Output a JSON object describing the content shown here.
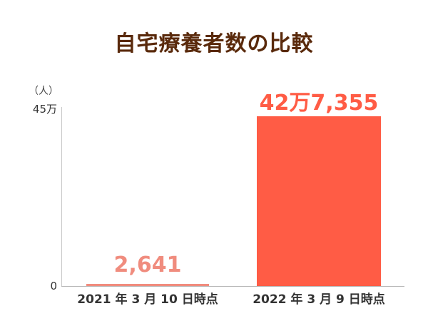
{
  "chart_data": {
    "type": "bar",
    "title": "自宅療養者数の比較",
    "xlabel": "",
    "ylabel": "（人）",
    "ylim": [
      0,
      450000
    ],
    "yticks": [
      {
        "value": 0,
        "label": "0"
      },
      {
        "value": 450000,
        "label": "45万"
      }
    ],
    "grid": false,
    "categories": [
      "2021年3月10日時点",
      "2022年3月9日時点"
    ],
    "values": [
      2641,
      427355
    ],
    "data_labels": [
      "2,641",
      "42万7,355"
    ],
    "colors": [
      "#f08c7e",
      "#ff5c45"
    ]
  },
  "display": {
    "title": "自宅療養者数の比較",
    "unit": "（人）",
    "ytick_top": "45万",
    "ytick_bottom": "0",
    "bar1_label": "2,641",
    "bar2_label": "42万7,355",
    "cat1": "2021 年 3 月 10 日時点",
    "cat2": "2022 年 3 月 9 日時点"
  }
}
